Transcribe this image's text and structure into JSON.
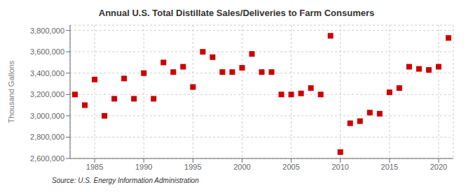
{
  "chart_data": {
    "type": "scatter",
    "title": "Annual U.S. Total Distillate Sales/Deliveries to Farm Consumers",
    "y_label": "Thousand Gallons",
    "annotations": [
      "Source: U.S. Energy Information Administration"
    ],
    "color": "#cc0000",
    "marker": "square",
    "grid": true,
    "xlim": [
      1982.5,
      2021.5
    ],
    "ylim": [
      2600000,
      3850000
    ],
    "xticks": [
      1985,
      1990,
      1995,
      2000,
      2005,
      2010,
      2015,
      2020
    ],
    "yticks": [
      {
        "value": 2600000,
        "label": "2,600,000"
      },
      {
        "value": 2800000,
        "label": "2,800,000"
      },
      {
        "value": 3000000,
        "label": "3,000,000"
      },
      {
        "value": 3200000,
        "label": "3,200,000"
      },
      {
        "value": 3400000,
        "label": "3,400,000"
      },
      {
        "value": 3600000,
        "label": "3,600,000"
      },
      {
        "value": 3800000,
        "label": "3,800,000"
      }
    ],
    "x": [
      1983,
      1984,
      1985,
      1986,
      1987,
      1988,
      1989,
      1990,
      1991,
      1992,
      1993,
      1994,
      1995,
      1996,
      1997,
      1998,
      1999,
      2000,
      2001,
      2002,
      2003,
      2004,
      2005,
      2006,
      2007,
      2008,
      2009,
      2010,
      2011,
      2012,
      2013,
      2014,
      2015,
      2016,
      2017,
      2018,
      2019,
      2020,
      2021
    ],
    "values": [
      3200000,
      3100000,
      3340000,
      3000000,
      3160000,
      3350000,
      3160000,
      3400000,
      3160000,
      3500000,
      3410000,
      3460000,
      3270000,
      3600000,
      3550000,
      3410000,
      3410000,
      3450000,
      3580000,
      3410000,
      3410000,
      3200000,
      3200000,
      3210000,
      3260000,
      3200000,
      3750000,
      2660000,
      2930000,
      2950000,
      3030000,
      3020000,
      3220000,
      3260000,
      3460000,
      3440000,
      3430000,
      3460000,
      3730000
    ]
  }
}
